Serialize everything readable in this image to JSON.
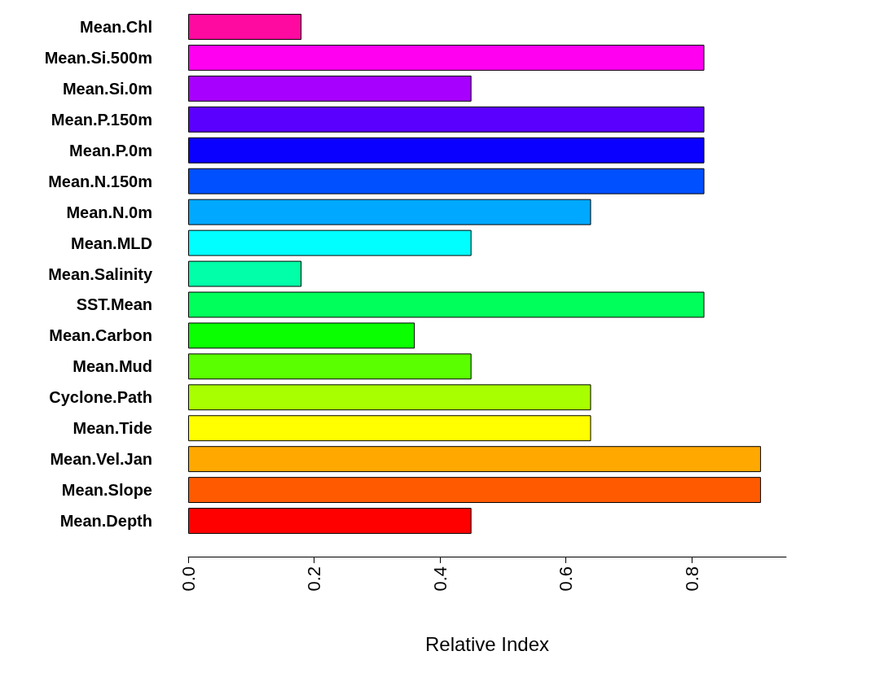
{
  "chart_data": {
    "type": "bar",
    "orientation": "horizontal",
    "xlabel": "Relative Index",
    "categories": [
      "Mean.Chl",
      "Mean.Si.500m",
      "Mean.Si.0m",
      "Mean.P.150m",
      "Mean.P.0m",
      "Mean.N.150m",
      "Mean.N.0m",
      "Mean.MLD",
      "Mean.Salinity",
      "SST.Mean",
      "Mean.Carbon",
      "Mean.Mud",
      "Cyclone.Path",
      "Mean.Tide",
      "Mean.Vel.Jan",
      "Mean.Slope",
      "Mean.Depth"
    ],
    "values": [
      0.18,
      0.82,
      0.45,
      0.82,
      0.82,
      0.82,
      0.64,
      0.45,
      0.18,
      0.82,
      0.36,
      0.45,
      0.64,
      0.64,
      0.91,
      0.91,
      0.45
    ],
    "colors": [
      "#ff0aa0",
      "#ff00f0",
      "#a800ff",
      "#5a00ff",
      "#0a00ff",
      "#0050ff",
      "#00a8ff",
      "#00ffff",
      "#00ffa8",
      "#00ff5a",
      "#0aff00",
      "#5aff00",
      "#a8ff00",
      "#ffff00",
      "#ffa800",
      "#ff5a00",
      "#ff0000"
    ],
    "xlim": [
      0,
      0.95
    ],
    "xticks": [
      {
        "value": 0,
        "label": "0.0"
      },
      {
        "value": 0.2,
        "label": "0.2"
      },
      {
        "value": 0.4,
        "label": "0.4"
      },
      {
        "value": 0.6,
        "label": "0.6"
      },
      {
        "value": 0.8,
        "label": "0.8"
      }
    ]
  }
}
